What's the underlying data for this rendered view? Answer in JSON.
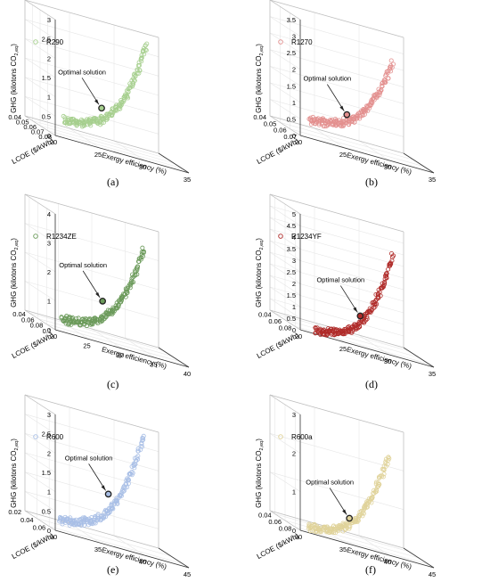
{
  "chart_data": [
    {
      "type": "scatter",
      "caption": "(a)",
      "series": [
        {
          "name": "R290",
          "color": "#a6cf8e"
        }
      ],
      "zlabel_main": "GHG (kilotons CO",
      "zlabel_sub": "2,eq",
      "zlabel_end": ")",
      "xlabel": "Exergy efficiency (%)",
      "ylabel": "LCOE ($/kWh)",
      "zticks": [
        "0",
        "0.5",
        "1",
        "1.5",
        "2",
        "2.5",
        "3"
      ],
      "xticks": [
        "20",
        "25",
        "30",
        "35"
      ],
      "yticks": [
        "0.04",
        "0.05",
        "0.06",
        "0.07",
        "0.08"
      ],
      "xlim": [
        20,
        35
      ],
      "ylim": [
        0.04,
        0.08
      ],
      "zlim": [
        0,
        3
      ],
      "front_start": [
        22,
        0.068,
        0.38
      ],
      "front_end": [
        33.5,
        0.042,
        2.75
      ],
      "optimal": {
        "x": 27.5,
        "y": 0.053,
        "z": 0.85,
        "label": "Optimal solution"
      }
    },
    {
      "type": "scatter",
      "caption": "(b)",
      "series": [
        {
          "name": "R1270",
          "color": "#e3908f"
        }
      ],
      "zlabel_main": "GHG (kilotons CO",
      "zlabel_sub": "2,eq",
      "zlabel_end": ")",
      "xlabel": "Exergy efficiency (%)",
      "ylabel": "LCOE ($/kWh)",
      "zticks": [
        "0",
        "0.5",
        "1",
        "1.5",
        "2",
        "2.5",
        "3",
        "3.5"
      ],
      "xticks": [
        "20",
        "25",
        "30",
        "35"
      ],
      "yticks": [
        "0.04",
        "0.05",
        "0.06",
        "0.07"
      ],
      "xlim": [
        20,
        35
      ],
      "ylim": [
        0.04,
        0.07
      ],
      "zlim": [
        0,
        3.5
      ],
      "front_start": [
        22,
        0.062,
        0.45
      ],
      "front_end": [
        33.5,
        0.042,
        2.65
      ],
      "optimal": {
        "x": 27.5,
        "y": 0.05,
        "z": 0.8,
        "label": "Optimal solution"
      }
    },
    {
      "type": "scatter",
      "caption": "(c)",
      "series": [
        {
          "name": "R1234ZE",
          "color": "#6b9a5a"
        }
      ],
      "zlabel_main": "GHG (kilotons CO",
      "zlabel_sub": "2,eq",
      "zlabel_end": ")",
      "xlabel": "Exergy efficiency (%)",
      "ylabel": "LCOE ($/kWh)",
      "zticks": [
        "0",
        "1",
        "2",
        "3",
        "4"
      ],
      "xticks": [
        "20",
        "25",
        "30",
        "35",
        "40"
      ],
      "yticks": [
        "0.04",
        "0.06",
        "0.08",
        "0.1"
      ],
      "xlim": [
        20,
        40
      ],
      "ylim": [
        0.03,
        0.1
      ],
      "zlim": [
        0,
        4
      ],
      "front_start": [
        22,
        0.085,
        0.35
      ],
      "front_end": [
        37.5,
        0.035,
        3.3
      ],
      "optimal": {
        "x": 30,
        "y": 0.055,
        "z": 1.2,
        "label": "Optimal solution"
      }
    },
    {
      "type": "scatter",
      "caption": "(d)",
      "series": [
        {
          "name": "R1234YF",
          "color": "#b02c2a"
        }
      ],
      "zlabel_main": "GHG (kilotons CO",
      "zlabel_sub": "2,eq",
      "zlabel_end": ")",
      "xlabel": "Exergy efficiency (%)",
      "ylabel": "LCOE ($/kWh)",
      "zticks": [
        "0",
        "0.5",
        "1",
        "1.5",
        "2",
        "2.5",
        "3",
        "3.5",
        "4",
        "4.5",
        "5"
      ],
      "xticks": [
        "20",
        "25",
        "30",
        "35"
      ],
      "yticks": [
        "0.04",
        "0.06",
        "0.08"
      ],
      "xlim": [
        20,
        35
      ],
      "ylim": [
        0.03,
        0.09
      ],
      "zlim": [
        0,
        5
      ],
      "front_start": [
        22,
        0.085,
        0.1
      ],
      "front_end": [
        33.5,
        0.035,
        3.9
      ],
      "optimal": {
        "x": 29,
        "y": 0.05,
        "z": 1.0,
        "label": "Optimal solution"
      }
    },
    {
      "type": "scatter",
      "caption": "(e)",
      "series": [
        {
          "name": "R600",
          "color": "#a9bfe6"
        }
      ],
      "zlabel_main": "GHG (kilotons CO",
      "zlabel_sub": "2,eq",
      "zlabel_end": ")",
      "xlabel": "Exergy efficiency (%)",
      "ylabel": "LCOE ($/kWh)",
      "zticks": [
        "0",
        "0.5",
        "1",
        "1.5",
        "2",
        "2.5",
        "3"
      ],
      "xticks": [
        "30",
        "35",
        "40",
        "45"
      ],
      "yticks": [
        "0.02",
        "0.04",
        "0.06"
      ],
      "xlim": [
        30,
        45
      ],
      "ylim": [
        0.02,
        0.07
      ],
      "zlim": [
        0,
        3
      ],
      "front_start": [
        31,
        0.063,
        0.28
      ],
      "front_end": [
        43,
        0.025,
        2.85
      ],
      "optimal": {
        "x": 38,
        "y": 0.04,
        "z": 1.15,
        "label": "Optimal solution"
      }
    },
    {
      "type": "scatter",
      "caption": "(f)",
      "series": [
        {
          "name": "R600a",
          "color": "#e0d39a"
        }
      ],
      "zlabel_main": "GHG (kilotons CO",
      "zlabel_sub": "2,eq",
      "zlabel_end": ")",
      "xlabel": "Exergy efficiency (%)",
      "ylabel": "LCOE ($/kWh)",
      "zticks": [
        "0",
        "1",
        "2",
        "3"
      ],
      "xticks": [
        "30",
        "35",
        "40",
        "45"
      ],
      "yticks": [
        "0.04",
        "0.06",
        "0.08"
      ],
      "xlim": [
        30,
        45
      ],
      "ylim": [
        0.03,
        0.09
      ],
      "zlim": [
        0,
        3
      ],
      "front_start": [
        31.5,
        0.08,
        0.1
      ],
      "front_end": [
        43,
        0.035,
        2.3
      ],
      "optimal": {
        "x": 37.5,
        "y": 0.055,
        "z": 0.5,
        "label": "Optimal solution"
      }
    }
  ]
}
